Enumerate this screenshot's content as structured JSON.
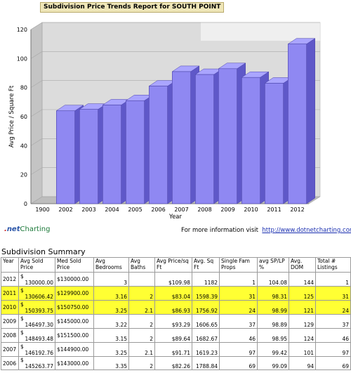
{
  "report_title": "Subdivision Price Trends Report for SOUTH POINT",
  "chart_data": {
    "type": "bar",
    "title": "Subdivision Price Trends Report for SOUTH POINT",
    "xlabel": "Year",
    "ylabel": "Avg Price / Square Ft",
    "categories": [
      "1900",
      "2002",
      "2003",
      "2004",
      "2005",
      "2006",
      "2007",
      "2008",
      "2009",
      "2010",
      "2011",
      "2012"
    ],
    "values": [
      0,
      64,
      65,
      68,
      71,
      81,
      91,
      89,
      93,
      87,
      83,
      110
    ],
    "y_ticks": [
      "0",
      "20",
      "40",
      "60",
      "80",
      "100",
      "120"
    ],
    "ylim": [
      0,
      120
    ],
    "bar_color": "#8f88f2",
    "grid": true
  },
  "footer": {
    "logo_dot": ".",
    "logo_net": "net",
    "logo_charting": "Charting",
    "more_info_text": "For more information visit",
    "more_info_link": "http://www.dotnetcharting.com"
  },
  "summary": {
    "title": "Subdivision Summary",
    "headers": [
      "Year",
      "Avg Sold Price",
      "Med Sold Price",
      "Avg Bedrooms",
      "Avg Baths",
      "Avg Price/sq Ft",
      "Avg. Sq Ft",
      "Single Fam Props",
      "avg SP/LP %",
      "Avg. DOM",
      "Total # Listings"
    ],
    "rows": [
      {
        "year": "2012",
        "avg_sold": "130000.00",
        "med_sold": "$130000.00",
        "beds": "3",
        "baths": "",
        "ppsf": "$109.98",
        "sqft": "1182",
        "single": "1",
        "splp": "104.08",
        "dom": "144",
        "total": "1"
      },
      {
        "year": "2011",
        "avg_sold": "130606.42",
        "med_sold": "$129900.00",
        "beds": "3.16",
        "baths": "2",
        "ppsf": "$83.04",
        "sqft": "1598.39",
        "single": "31",
        "splp": "98.31",
        "dom": "125",
        "total": "31"
      },
      {
        "year": "2010",
        "avg_sold": "150393.75",
        "med_sold": "$150750.00",
        "beds": "3.25",
        "baths": "2.1",
        "ppsf": "$86.93",
        "sqft": "1756.92",
        "single": "24",
        "splp": "98.99",
        "dom": "121",
        "total": "24"
      },
      {
        "year": "2009",
        "avg_sold": "146497.30",
        "med_sold": "$145000.00",
        "beds": "3.22",
        "baths": "2",
        "ppsf": "$93.29",
        "sqft": "1606.65",
        "single": "37",
        "splp": "98.89",
        "dom": "129",
        "total": "37"
      },
      {
        "year": "2008",
        "avg_sold": "148493.48",
        "med_sold": "$151500.00",
        "beds": "3.15",
        "baths": "2",
        "ppsf": "$89.64",
        "sqft": "1682.67",
        "single": "46",
        "splp": "98.95",
        "dom": "124",
        "total": "46"
      },
      {
        "year": "2007",
        "avg_sold": "146192.76",
        "med_sold": "$144900.00",
        "beds": "3.25",
        "baths": "2.1",
        "ppsf": "$91.71",
        "sqft": "1619.23",
        "single": "97",
        "splp": "99.42",
        "dom": "101",
        "total": "97"
      },
      {
        "year": "2006",
        "avg_sold": "145263.77",
        "med_sold": "$143000.00",
        "beds": "3.35",
        "baths": "2",
        "ppsf": "$82.26",
        "sqft": "1788.84",
        "single": "69",
        "splp": "99.09",
        "dom": "94",
        "total": "69"
      }
    ],
    "highlighted_years": [
      "2011",
      "2010"
    ],
    "currency_symbol": "$"
  }
}
